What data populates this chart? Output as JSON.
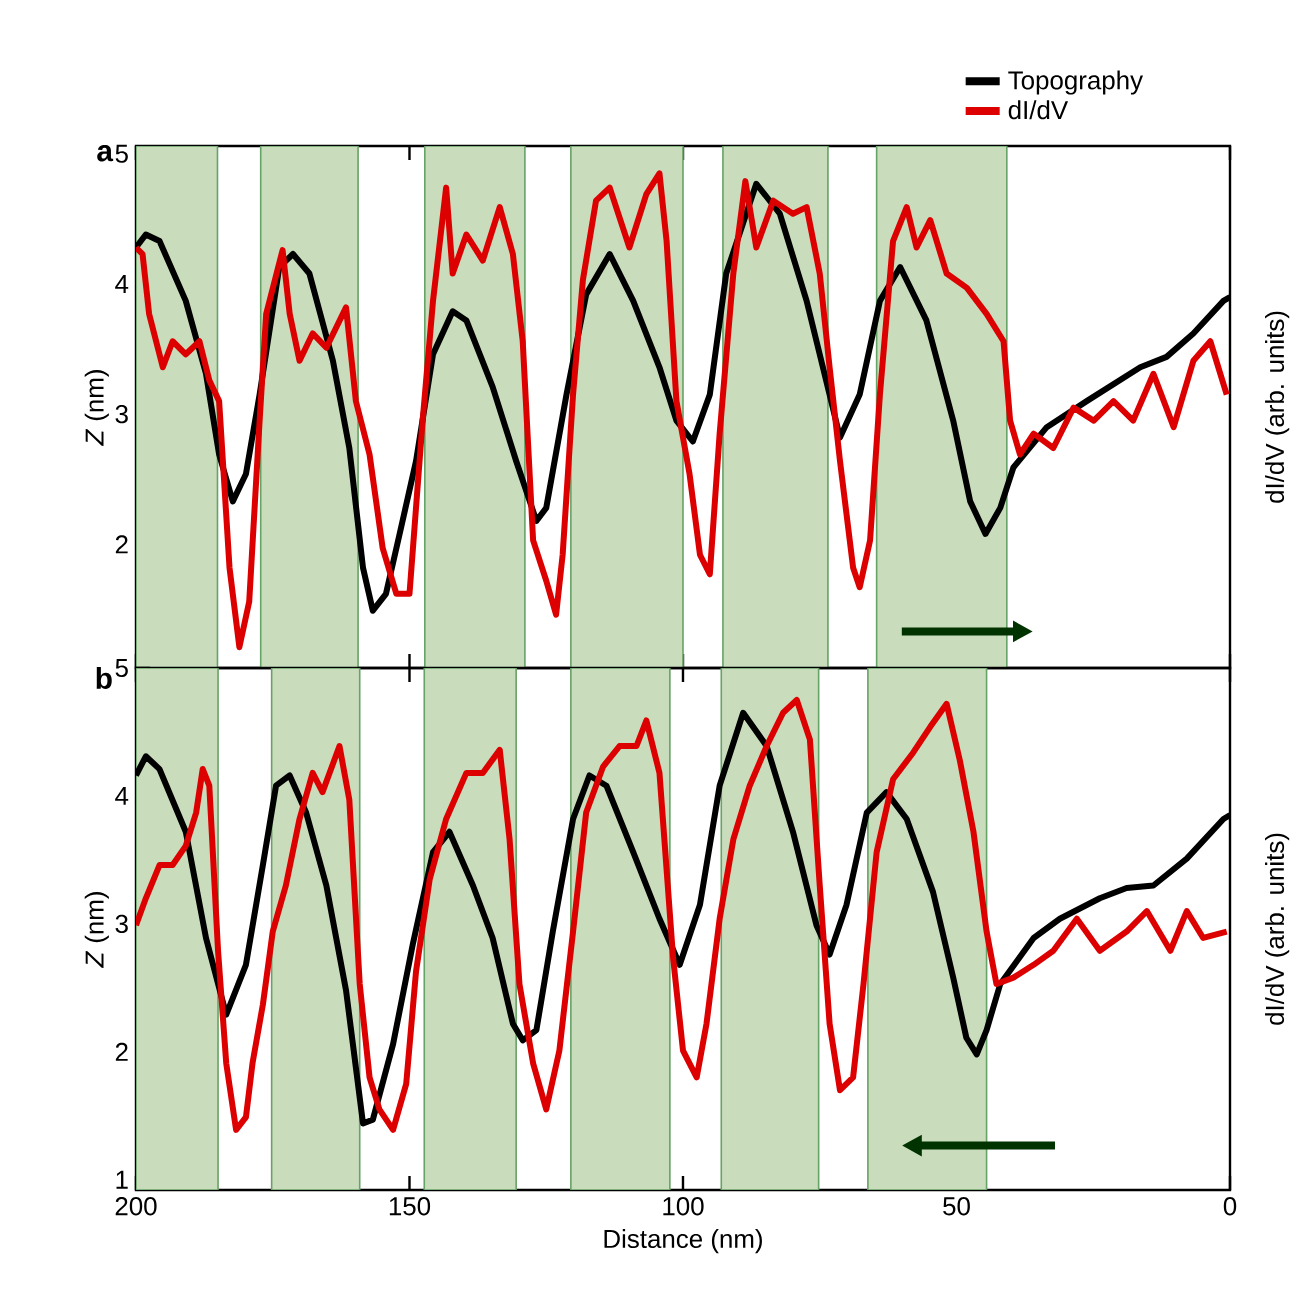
{
  "chart_data": [
    {
      "type": "line",
      "title": "a",
      "ylabel": "*Z* (nm)",
      "y2label": "dI/dV (arb. units)",
      "xlim": [
        200,
        0
      ],
      "xticks": [
        200,
        150,
        100,
        50,
        0
      ],
      "ylim": [
        1.05,
        5.06
      ],
      "yticks": [
        2,
        3,
        4,
        5
      ],
      "tick_labels": "y",
      "legend": "top right",
      "bands": [
        {
          "axis": "x",
          "from": 200,
          "to": 185.1,
          "color": "#c9dcbc"
        },
        {
          "axis": "x",
          "from": 177.2,
          "to": 159.4,
          "color": "#c9dcbc"
        },
        {
          "axis": "x",
          "from": 147.2,
          "to": 128.9,
          "color": "#c9dcbc"
        },
        {
          "axis": "x",
          "from": 120.5,
          "to": 100.0,
          "color": "#c9dcbc"
        },
        {
          "axis": "x",
          "from": 92.7,
          "to": 73.5,
          "color": "#c9dcbc"
        },
        {
          "axis": "x",
          "from": 64.6,
          "to": 40.8,
          "color": "#c9dcbc"
        }
      ],
      "series": [
        {
          "name": "Topography",
          "color": "#000000",
          "x": [
            200,
            198.2,
            195.7,
            190.9,
            187.2,
            184.8,
            182.3,
            179.9,
            177.4,
            173.8,
            171.3,
            168.3,
            164.0,
            161.0,
            158.5,
            156.7,
            154.3,
            151.8,
            148.8,
            145.7,
            142.1,
            139.6,
            134.8,
            130.5,
            126.8,
            125.0,
            121.3,
            117.7,
            113.4,
            109.1,
            104.3,
            101.2,
            98.2,
            95.1,
            92.1,
            86.6,
            82.3,
            77.4,
            73.2,
            71.3,
            67.7,
            64.0,
            60.3,
            55.5,
            50.6,
            47.5,
            44.7,
            42.0,
            39.6,
            33.5,
            26.2,
            16.4,
            11.6,
            6.7,
            1.2,
            0
          ],
          "values": [
            4.28,
            4.38,
            4.33,
            3.87,
            3.31,
            2.69,
            2.33,
            2.54,
            3.15,
            4.13,
            4.23,
            4.08,
            3.41,
            2.74,
            1.82,
            1.49,
            1.62,
            2.08,
            2.64,
            3.46,
            3.79,
            3.72,
            3.21,
            2.64,
            2.18,
            2.28,
            3.15,
            3.92,
            4.23,
            3.87,
            3.36,
            2.95,
            2.79,
            3.15,
            4.08,
            4.77,
            4.54,
            3.87,
            3.15,
            2.82,
            3.15,
            3.87,
            4.13,
            3.72,
            2.95,
            2.33,
            2.08,
            2.28,
            2.59,
            2.9,
            3.1,
            3.36,
            3.44,
            3.62,
            3.87,
            3.9
          ]
        },
        {
          "name": "dI/dV",
          "color": "#dd0000",
          "x": [
            200,
            198.8,
            197.6,
            195.1,
            193.3,
            190.9,
            188.4,
            186.6,
            184.8,
            182.9,
            181.1,
            179.3,
            177.4,
            176.2,
            173.2,
            171.9,
            170.1,
            167.7,
            165.2,
            161.6,
            159.8,
            157.3,
            154.9,
            152.4,
            150.0,
            147.6,
            145.7,
            143.3,
            142.1,
            139.6,
            136.6,
            133.5,
            131.1,
            129.3,
            127.4,
            125.0,
            123.2,
            122.0,
            120.1,
            118.3,
            115.9,
            113.4,
            109.8,
            106.7,
            104.3,
            103.0,
            101.2,
            98.8,
            96.9,
            95.1,
            93.3,
            90.8,
            88.6,
            86.6,
            83.5,
            79.9,
            77.4,
            75.0,
            73.2,
            71.3,
            68.9,
            67.7,
            65.8,
            64.0,
            61.6,
            59.1,
            57.3,
            54.8,
            51.8,
            48.1,
            44.5,
            41.4,
            40.2,
            38.4,
            35.9,
            32.3,
            28.6,
            24.9,
            21.3,
            17.7,
            14.0,
            10.3,
            6.7,
            3.6,
            0.6
          ],
          "values": [
            4.28,
            4.23,
            3.77,
            3.36,
            3.56,
            3.46,
            3.56,
            3.26,
            3.1,
            1.82,
            1.21,
            1.56,
            2.95,
            3.77,
            4.26,
            3.77,
            3.41,
            3.62,
            3.51,
            3.82,
            3.1,
            2.69,
            1.97,
            1.62,
            1.62,
            2.95,
            3.87,
            4.74,
            4.08,
            4.38,
            4.18,
            4.59,
            4.23,
            3.56,
            2.03,
            1.72,
            1.46,
            1.92,
            3.15,
            4.03,
            4.64,
            4.74,
            4.28,
            4.69,
            4.85,
            4.33,
            3.1,
            2.54,
            1.92,
            1.77,
            2.85,
            4.08,
            4.79,
            4.28,
            4.64,
            4.54,
            4.59,
            4.08,
            3.36,
            2.64,
            1.82,
            1.67,
            2.03,
            3.15,
            4.33,
            4.59,
            4.28,
            4.49,
            4.08,
            3.97,
            3.77,
            3.56,
            2.95,
            2.69,
            2.85,
            2.74,
            3.05,
            2.95,
            3.1,
            2.95,
            3.31,
            2.9,
            3.41,
            3.56,
            3.15
          ]
        }
      ]
    },
    {
      "type": "line",
      "title": "b",
      "xlabel": "Distance (nm)",
      "ylabel": "*Z* (nm)",
      "y2label": "dI/dV (arb. units)",
      "xlim": [
        200,
        0
      ],
      "xticks": [
        200,
        150,
        100,
        50,
        0
      ],
      "ylim": [
        0.92,
        5.0
      ],
      "yticks": [
        1,
        2,
        3,
        4,
        5
      ],
      "bands": [
        {
          "axis": "x",
          "from": 200,
          "to": 185.0,
          "color": "#c9dcbc"
        },
        {
          "axis": "x",
          "from": 175.2,
          "to": 159.1,
          "color": "#c9dcbc"
        },
        {
          "axis": "x",
          "from": 147.3,
          "to": 130.5,
          "color": "#c9dcbc"
        },
        {
          "axis": "x",
          "from": 120.5,
          "to": 102.4,
          "color": "#c9dcbc"
        },
        {
          "axis": "x",
          "from": 93.0,
          "to": 75.2,
          "color": "#c9dcbc"
        },
        {
          "axis": "x",
          "from": 66.2,
          "to": 44.5,
          "color": "#c9dcbc"
        }
      ],
      "series": [
        {
          "color": "#000000",
          "x": [
            200,
            198.2,
            195.7,
            190.9,
            187.2,
            183.5,
            179.9,
            176.8,
            174.4,
            171.9,
            168.9,
            165.2,
            161.6,
            158.5,
            156.7,
            153.0,
            149.4,
            145.7,
            142.7,
            138.4,
            134.8,
            131.1,
            129.3,
            126.8,
            123.8,
            120.1,
            117.1,
            114.0,
            109.1,
            104.3,
            100.6,
            96.9,
            93.3,
            89.0,
            84.7,
            79.9,
            75.6,
            73.2,
            70.1,
            66.4,
            62.8,
            59.1,
            54.3,
            50.6,
            48.2,
            46.3,
            44.5,
            42.0,
            35.9,
            31.1,
            23.8,
            18.9,
            14.0,
            7.9,
            1.2,
            0
          ],
          "values": [
            4.16,
            4.31,
            4.21,
            3.72,
            2.89,
            2.29,
            2.68,
            3.46,
            4.08,
            4.16,
            3.87,
            3.3,
            2.48,
            1.44,
            1.47,
            2.06,
            2.84,
            3.56,
            3.72,
            3.3,
            2.89,
            2.22,
            2.09,
            2.17,
            2.94,
            3.82,
            4.16,
            4.08,
            3.56,
            3.04,
            2.68,
            3.15,
            4.08,
            4.65,
            4.39,
            3.72,
            2.99,
            2.76,
            3.15,
            3.87,
            4.03,
            3.82,
            3.25,
            2.58,
            2.11,
            1.98,
            2.17,
            2.53,
            2.89,
            3.04,
            3.2,
            3.28,
            3.3,
            3.51,
            3.82,
            3.85
          ]
        },
        {
          "color": "#dd0000",
          "x": [
            200,
            198.2,
            195.7,
            193.3,
            190.9,
            189.0,
            187.8,
            186.6,
            185.0,
            183.5,
            181.7,
            179.9,
            178.7,
            176.8,
            175.0,
            172.6,
            170.1,
            167.7,
            165.9,
            162.8,
            161.0,
            159.1,
            157.3,
            155.5,
            153.0,
            150.6,
            148.8,
            146.3,
            143.3,
            139.6,
            136.6,
            133.5,
            131.7,
            129.9,
            127.4,
            125.0,
            122.6,
            120.1,
            117.7,
            114.6,
            111.6,
            108.5,
            106.7,
            104.3,
            101.8,
            100.0,
            97.5,
            95.7,
            93.3,
            90.8,
            87.8,
            84.7,
            81.7,
            79.2,
            76.8,
            75.0,
            73.2,
            71.3,
            68.9,
            67.0,
            64.6,
            61.6,
            57.9,
            54.8,
            51.8,
            49.4,
            46.9,
            44.5,
            42.7,
            39.6,
            35.9,
            32.3,
            28.0,
            23.8,
            18.9,
            15.2,
            10.9,
            7.9,
            4.9,
            0.6
          ],
          "values": [
            2.99,
            3.2,
            3.46,
            3.46,
            3.61,
            3.87,
            4.21,
            4.08,
            2.79,
            1.91,
            1.39,
            1.49,
            1.91,
            2.37,
            2.94,
            3.3,
            3.82,
            4.18,
            4.03,
            4.39,
            3.97,
            2.53,
            1.8,
            1.55,
            1.39,
            1.75,
            2.63,
            3.35,
            3.82,
            4.18,
            4.18,
            4.36,
            3.66,
            2.53,
            1.91,
            1.55,
            2.01,
            2.94,
            3.87,
            4.23,
            4.39,
            4.39,
            4.59,
            4.18,
            2.73,
            2.01,
            1.8,
            2.22,
            3.04,
            3.66,
            4.08,
            4.39,
            4.65,
            4.75,
            4.44,
            3.3,
            2.22,
            1.7,
            1.8,
            2.53,
            3.56,
            4.13,
            4.34,
            4.54,
            4.72,
            4.28,
            3.72,
            2.94,
            2.53,
            2.58,
            2.68,
            2.79,
            3.04,
            2.79,
            2.94,
            3.1,
            2.79,
            3.1,
            2.89,
            2.94
          ]
        }
      ]
    }
  ]
}
